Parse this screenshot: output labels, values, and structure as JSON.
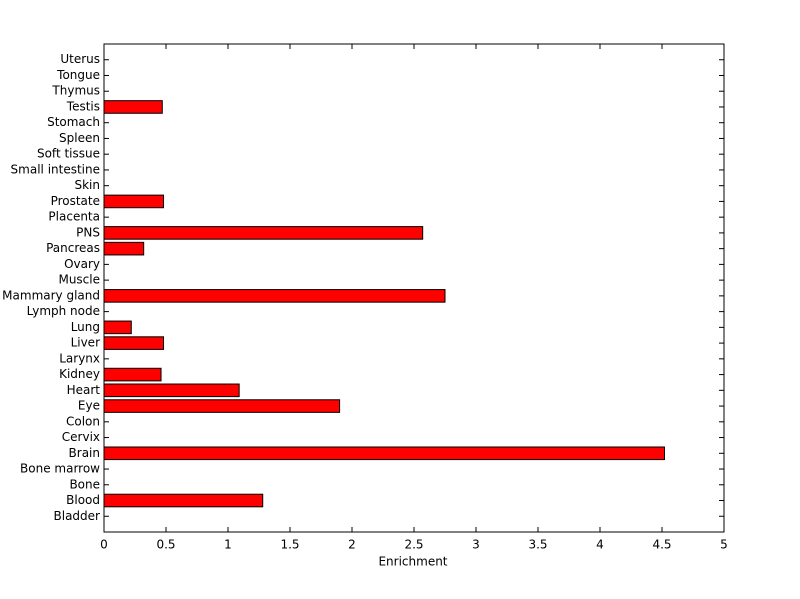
{
  "chart_data": {
    "type": "barh",
    "x_label": "Enrichment",
    "categories": [
      "Bladder",
      "Blood",
      "Bone",
      "Bone marrow",
      "Brain",
      "Cervix",
      "Colon",
      "Eye",
      "Heart",
      "Kidney",
      "Larynx",
      "Liver",
      "Lung",
      "Lymph node",
      "Mammary gland",
      "Muscle",
      "Ovary",
      "Pancreas",
      "PNS",
      "Placenta",
      "Prostate",
      "Skin",
      "Small intestine",
      "Soft tissue",
      "Spleen",
      "Stomach",
      "Testis",
      "Thymus",
      "Tongue",
      "Uterus"
    ],
    "values": [
      0,
      1.28,
      0,
      0,
      4.52,
      0,
      0,
      1.9,
      1.09,
      0.46,
      0,
      0.48,
      0.22,
      0,
      2.75,
      0,
      0,
      0.32,
      2.57,
      0,
      0.48,
      0,
      0,
      0,
      0,
      0,
      0.47,
      0,
      0,
      0
    ],
    "color": "#ff0000",
    "xlim": [
      0,
      5
    ],
    "xticks": [
      0,
      0.5,
      1,
      1.5,
      2,
      2.5,
      3,
      3.5,
      4,
      4.5,
      5
    ]
  }
}
